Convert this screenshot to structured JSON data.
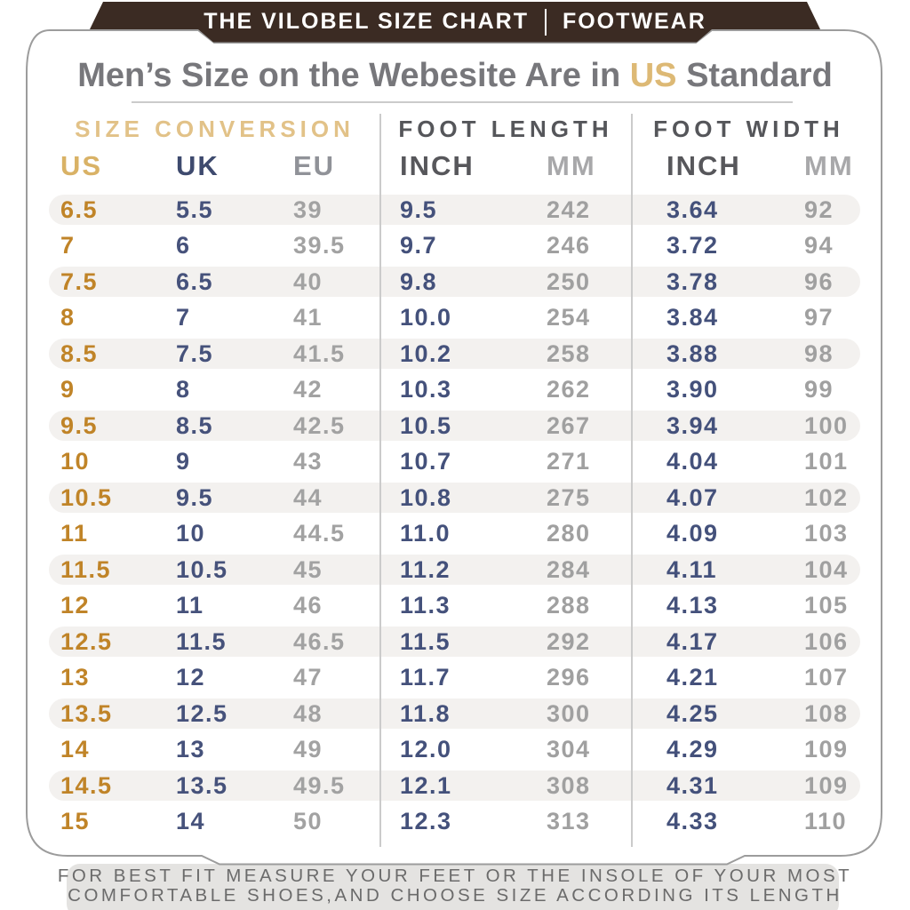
{
  "banner": {
    "brand": "THE VILOBEL SIZE CHART",
    "category": "FOOTWEAR",
    "bg_color": "#3b2b23",
    "text_color": "#ffffff"
  },
  "title": {
    "prefix": "Men’s Size on the Webesite Are in ",
    "highlight": "US",
    "suffix": " Standard"
  },
  "chart_data": {
    "type": "table",
    "title": "Men’s Size on the Webesite Are in US Standard",
    "column_groups": [
      "SIZE CONVERSION",
      "FOOT LENGTH",
      "FOOT WIDTH"
    ],
    "columns": [
      "US",
      "UK",
      "EU",
      "INCH",
      "MM",
      "INCH",
      "MM"
    ],
    "rows": [
      [
        "6.5",
        "5.5",
        "39",
        "9.5",
        "242",
        "3.64",
        "92"
      ],
      [
        "7",
        "6",
        "39.5",
        "9.7",
        "246",
        "3.72",
        "94"
      ],
      [
        "7.5",
        "6.5",
        "40",
        "9.8",
        "250",
        "3.78",
        "96"
      ],
      [
        "8",
        "7",
        "41",
        "10.0",
        "254",
        "3.84",
        "97"
      ],
      [
        "8.5",
        "7.5",
        "41.5",
        "10.2",
        "258",
        "3.88",
        "98"
      ],
      [
        "9",
        "8",
        "42",
        "10.3",
        "262",
        "3.90",
        "99"
      ],
      [
        "9.5",
        "8.5",
        "42.5",
        "10.5",
        "267",
        "3.94",
        "100"
      ],
      [
        "10",
        "9",
        "43",
        "10.7",
        "271",
        "4.04",
        "101"
      ],
      [
        "10.5",
        "9.5",
        "44",
        "10.8",
        "275",
        "4.07",
        "102"
      ],
      [
        "11",
        "10",
        "44.5",
        "11.0",
        "280",
        "4.09",
        "103"
      ],
      [
        "11.5",
        "10.5",
        "45",
        "11.2",
        "284",
        "4.11",
        "104"
      ],
      [
        "12",
        "11",
        "46",
        "11.3",
        "288",
        "4.13",
        "105"
      ],
      [
        "12.5",
        "11.5",
        "46.5",
        "11.5",
        "292",
        "4.17",
        "106"
      ],
      [
        "13",
        "12",
        "47",
        "11.7",
        "296",
        "4.21",
        "107"
      ],
      [
        "13.5",
        "12.5",
        "48",
        "11.8",
        "300",
        "4.25",
        "108"
      ],
      [
        "14",
        "13",
        "49",
        "12.0",
        "304",
        "4.29",
        "109"
      ],
      [
        "14.5",
        "13.5",
        "49.5",
        "12.1",
        "308",
        "4.31",
        "109"
      ],
      [
        "15",
        "14",
        "50",
        "12.3",
        "313",
        "4.33",
        "110"
      ]
    ]
  },
  "footer": {
    "line1": "FOR BEST FIT MEASURE YOUR FEET OR THE INSOLE OF YOUR MOST",
    "line2": "COMFORTABLE SHOES,AND CHOOSE SIZE ACCORDING ITS LENGTH"
  },
  "colors": {
    "banner_brown": "#3b2b23",
    "gold_header": "#e2c288",
    "gold_value": "#c08428",
    "navy_value": "#46527b",
    "gray_value": "#a0a0a0",
    "dark_header": "#55565a",
    "row_stripe": "#f3f1ef",
    "card_border": "#9c9c9c",
    "footer_bar": "#e4e3e1",
    "title_gray": "#77777b",
    "title_gold": "#ddb975"
  }
}
